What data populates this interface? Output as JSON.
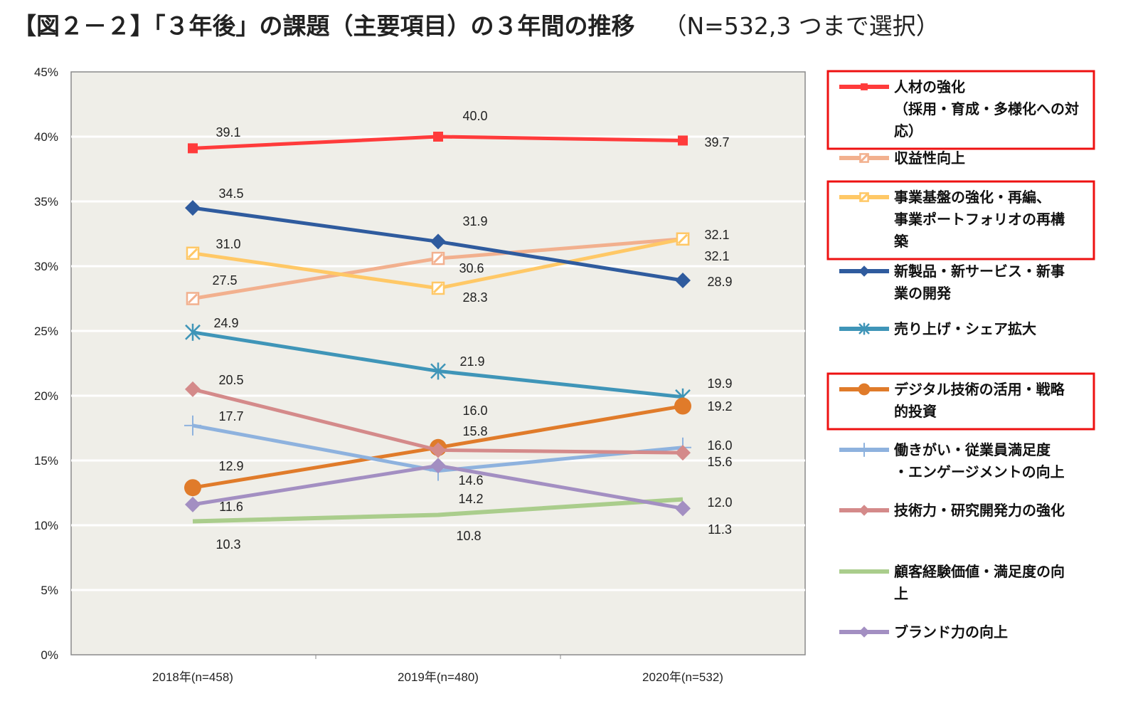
{
  "title": "【図２－２】「３年後」の課題（主要項目）の３年間の推移",
  "subtitle": "（N=532,3 つまで選択）",
  "chart_data": {
    "type": "line",
    "categories": [
      "2018年(n=458)",
      "2019年(n=480)",
      "2020年(n=532)"
    ],
    "ylim": [
      0,
      45
    ],
    "yticks": [
      "0%",
      "5%",
      "10%",
      "15%",
      "20%",
      "25%",
      "30%",
      "35%",
      "40%",
      "45%"
    ],
    "grid": true,
    "legend_position": "right",
    "series": [
      {
        "name": "人材の強化（採用・育成・多様化への対応）",
        "legend_lines": [
          "人材の強化",
          "（採用・育成・多様化への対",
          "応）"
        ],
        "values": [
          39.1,
          40.0,
          39.7
        ],
        "labels": [
          "39.1",
          "40.0",
          "39.7"
        ],
        "color": "#FF3B3B",
        "marker": "square",
        "highlighted": true
      },
      {
        "name": "収益性向上",
        "legend_lines": [
          "収益性向上"
        ],
        "values": [
          27.5,
          30.6,
          32.1
        ],
        "labels": [
          "27.5",
          "30.6",
          "32.1"
        ],
        "color": "#F2B08E",
        "marker": "hatched-square",
        "highlighted": false
      },
      {
        "name": "事業基盤の強化・再編、事業ポートフォリオの再構築",
        "legend_lines": [
          "事業基盤の強化・再編、",
          "事業ポートフォリオの再構",
          "築"
        ],
        "values": [
          31.0,
          28.3,
          32.1
        ],
        "labels": [
          "31.0",
          "28.3",
          "32.1"
        ],
        "color": "#FFC866",
        "marker": "hatched-square",
        "highlighted": true
      },
      {
        "name": "新製品・新サービス・新事業の開発",
        "legend_lines": [
          "新製品・新サービス・新事",
          "業の開発"
        ],
        "values": [
          34.5,
          31.9,
          28.9
        ],
        "labels": [
          "34.5",
          "31.9",
          "28.9"
        ],
        "color": "#2F5B9E",
        "marker": "diamond",
        "highlighted": false
      },
      {
        "name": "売り上げ・シェア拡大",
        "legend_lines": [
          "売り上げ・シェア拡大"
        ],
        "values": [
          24.9,
          21.9,
          19.9
        ],
        "labels": [
          "24.9",
          "21.9",
          "19.9"
        ],
        "color": "#3F95B8",
        "marker": "star",
        "highlighted": false
      },
      {
        "name": "デジタル技術の活用・戦略的投資",
        "legend_lines": [
          "デジタル技術の活用・戦略",
          "的投資"
        ],
        "values": [
          12.9,
          16.0,
          19.2
        ],
        "labels": [
          "12.9",
          "16.0",
          "19.2"
        ],
        "color": "#E07B2A",
        "marker": "circle",
        "highlighted": true
      },
      {
        "name": "働きがい・従業員満足度・エンゲージメントの向上",
        "legend_lines": [
          "働きがい・従業員満足度",
          "・エンゲージメントの向上"
        ],
        "values": [
          17.7,
          14.2,
          16.0
        ],
        "labels": [
          "17.7",
          "14.2",
          "16.0"
        ],
        "color": "#8EB2DE",
        "marker": "plus",
        "highlighted": false
      },
      {
        "name": "技術力・研究開発力の強化",
        "legend_lines": [
          "技術力・研究開発力の強化"
        ],
        "values": [
          20.5,
          15.8,
          15.6
        ],
        "labels": [
          "20.5",
          "15.8",
          "15.6"
        ],
        "color": "#D48A8A",
        "marker": "diamond",
        "highlighted": false
      },
      {
        "name": "顧客経験価値・満足度の向上",
        "legend_lines": [
          "顧客経験価値・満足度の向",
          "上"
        ],
        "values": [
          10.3,
          10.8,
          12.0
        ],
        "labels": [
          "10.3",
          "10.8",
          "12.0"
        ],
        "color": "#AACD8C",
        "marker": "none",
        "highlighted": false
      },
      {
        "name": "ブランド力の向上",
        "legend_lines": [
          "ブランド力の向上"
        ],
        "values": [
          11.6,
          14.6,
          11.3
        ],
        "labels": [
          "11.6",
          "14.6",
          "11.3"
        ],
        "color": "#A38FC2",
        "marker": "diamond",
        "highlighted": false
      }
    ]
  }
}
